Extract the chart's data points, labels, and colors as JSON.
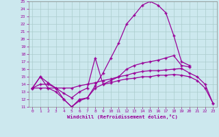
{
  "xlabel": "Windchill (Refroidissement éolien,°C)",
  "background_color": "#cce8ee",
  "grid_color": "#aacccc",
  "line_color": "#990099",
  "xlim": [
    -0.5,
    23.5
  ],
  "ylim": [
    11,
    25
  ],
  "xticks": [
    0,
    1,
    2,
    3,
    4,
    5,
    6,
    7,
    8,
    9,
    10,
    11,
    12,
    13,
    14,
    15,
    16,
    17,
    18,
    19,
    20,
    21,
    22,
    23
  ],
  "yticks": [
    11,
    12,
    13,
    14,
    15,
    16,
    17,
    18,
    19,
    20,
    21,
    22,
    23,
    24,
    25
  ],
  "series": [
    {
      "x": [
        0,
        1,
        2,
        3,
        4,
        5,
        6,
        7,
        8,
        9,
        10,
        11,
        12,
        13,
        14,
        15,
        16,
        17,
        18,
        19,
        20
      ],
      "y": [
        13.5,
        15.0,
        14.2,
        13.5,
        12.0,
        11.0,
        11.8,
        12.2,
        13.8,
        15.5,
        17.5,
        19.5,
        22.0,
        23.2,
        24.5,
        25.0,
        24.5,
        23.5,
        20.5,
        17.0,
        16.5
      ],
      "marker": true
    },
    {
      "x": [
        0,
        1,
        2,
        3,
        4,
        5,
        6,
        7,
        8,
        9,
        10,
        11,
        12,
        13,
        14,
        15,
        16,
        17,
        18,
        19,
        20
      ],
      "y": [
        13.5,
        14.0,
        14.0,
        13.5,
        12.8,
        12.2,
        13.0,
        13.5,
        17.5,
        14.0,
        14.5,
        15.0,
        16.0,
        16.5,
        16.8,
        17.0,
        17.2,
        17.5,
        17.8,
        16.5,
        16.3
      ],
      "marker": true
    },
    {
      "x": [
        0,
        1,
        2,
        3,
        4,
        5,
        6,
        7,
        8,
        9,
        10,
        11,
        12,
        13,
        14,
        15,
        16,
        17,
        18,
        19,
        20,
        21,
        22,
        23
      ],
      "y": [
        13.5,
        13.5,
        13.5,
        13.5,
        13.5,
        13.5,
        13.8,
        14.0,
        14.2,
        14.5,
        14.7,
        15.0,
        15.2,
        15.5,
        15.7,
        15.8,
        15.8,
        15.9,
        16.0,
        16.1,
        15.5,
        15.0,
        14.0,
        11.5
      ],
      "marker": true
    },
    {
      "x": [
        0,
        1,
        2,
        3,
        4,
        5,
        6,
        7,
        8,
        9,
        10,
        11,
        12,
        13,
        14,
        15,
        16,
        17,
        18,
        19,
        20,
        21,
        22,
        23
      ],
      "y": [
        13.5,
        15.0,
        13.5,
        13.0,
        12.0,
        11.0,
        12.0,
        12.2,
        13.5,
        14.0,
        14.2,
        14.5,
        14.7,
        14.8,
        15.0,
        15.0,
        15.2,
        15.2,
        15.3,
        15.2,
        15.0,
        14.5,
        13.5,
        11.5
      ],
      "marker": true
    }
  ]
}
